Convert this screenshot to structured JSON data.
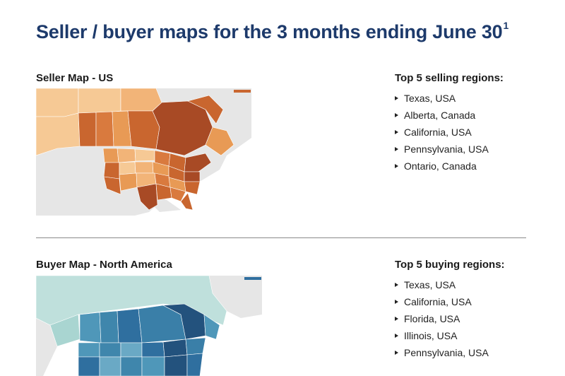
{
  "page": {
    "title": "Seller / buyer maps for the 3 months ending June 30",
    "title_footnote": "1"
  },
  "seller": {
    "map_title": "Seller Map - US",
    "list_heading": "Top 5 selling regions:",
    "regions": [
      "Texas, USA",
      "Alberta, Canada",
      "California, USA",
      "Pennsylvania, USA",
      "Ontario, Canada"
    ],
    "colors": {
      "light": "#f6c995",
      "mid": "#e89a55",
      "dark": "#c9662f",
      "darkest": "#a84a25",
      "land": "#e3e3e3"
    }
  },
  "buyer": {
    "map_title": "Buyer Map - North America",
    "list_heading": "Top 5 buying regions:",
    "regions": [
      "Texas, USA",
      "California, USA",
      "Florida, USA",
      "Illinois, USA",
      "Pennsylvania, USA"
    ],
    "colors": {
      "light": "#bfe0dc",
      "mid": "#4f97b9",
      "dark": "#2f6f9f",
      "darkest": "#23527d",
      "land": "#e3e3e3"
    }
  },
  "style": {
    "title_color": "#1d3a6b"
  }
}
